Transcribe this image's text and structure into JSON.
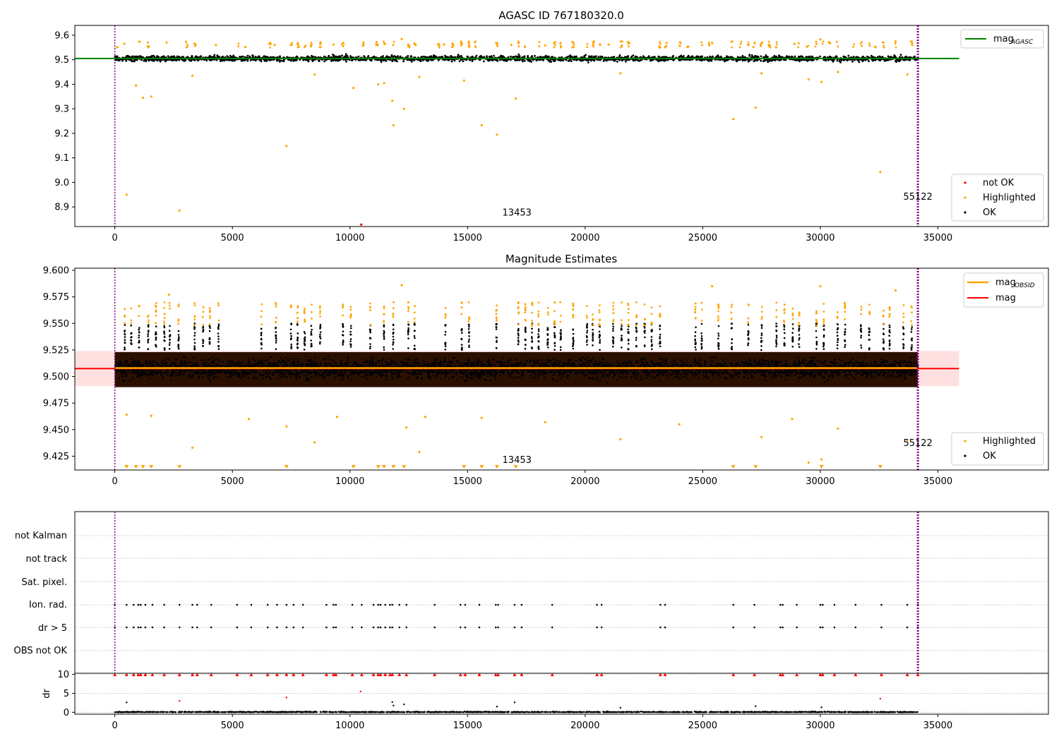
{
  "chart_data": [
    {
      "type": "scatter",
      "title": "AGASC ID 767180320.0",
      "xlabel": "",
      "ylabel": "",
      "xlim": [
        -1700,
        39700
      ],
      "ylim": [
        8.82,
        9.64
      ],
      "xticks": [
        "0",
        "5000",
        "10000",
        "15000",
        "20000",
        "25000",
        "30000",
        "35000"
      ],
      "yticks": [
        "9.6",
        "9.5",
        "9.4",
        "9.3",
        "9.2",
        "9.1",
        "9.0",
        "8.9"
      ],
      "xtick_values": [
        0,
        5000,
        10000,
        15000,
        20000,
        25000,
        30000,
        35000
      ],
      "ytick_values": [
        9.6,
        9.5,
        9.4,
        9.3,
        9.2,
        9.1,
        9.0,
        8.9
      ],
      "grid": false,
      "legend_top": {
        "position": "upper right",
        "entries": [
          {
            "label": "mag",
            "sub": "AGASC",
            "color": "#008000",
            "kind": "line"
          }
        ]
      },
      "legend_bottom": {
        "position": "lower right",
        "entries": [
          {
            "label": "not OK",
            "color": "#ff0000",
            "kind": "dot"
          },
          {
            "label": "Highlighted",
            "color": "#ffa500",
            "kind": "dot"
          },
          {
            "label": "OK",
            "color": "#000000",
            "kind": "dot"
          }
        ]
      },
      "mag_agasc": 9.505,
      "mag_line_range": [
        -1700,
        35900
      ],
      "ok_band": {
        "center": 9.505,
        "halfwidth": 0.025,
        "x_range": [
          0,
          34150
        ]
      },
      "obsid_markers": [
        {
          "x": 0,
          "label": ""
        },
        {
          "x": 34150,
          "label": "55122"
        }
      ],
      "annotations": [
        {
          "text": "13453",
          "x": 17100,
          "y": 8.865
        },
        {
          "text": "55122",
          "x": 34150,
          "y": 8.93
        }
      ],
      "series": [
        {
          "name": "not OK",
          "color": "#ff0000",
          "points": [
            [
              10480,
              8.828
            ]
          ]
        },
        {
          "name": "Highlighted",
          "color": "#ffa500",
          "points": [
            [
              500,
              8.95
            ],
            [
              900,
              9.395
            ],
            [
              1200,
              9.345
            ],
            [
              1550,
              9.35
            ],
            [
              2750,
              8.885
            ],
            [
              3300,
              9.435
            ],
            [
              7300,
              9.148
            ],
            [
              8500,
              9.44
            ],
            [
              10150,
              9.385
            ],
            [
              11200,
              9.4
            ],
            [
              11450,
              9.405
            ],
            [
              11800,
              9.333
            ],
            [
              11850,
              9.233
            ],
            [
              12300,
              9.3
            ],
            [
              12950,
              9.43
            ],
            [
              14850,
              9.415
            ],
            [
              15600,
              9.233
            ],
            [
              16250,
              9.195
            ],
            [
              17050,
              9.342
            ],
            [
              21500,
              9.445
            ],
            [
              26300,
              9.258
            ],
            [
              27250,
              9.305
            ],
            [
              27500,
              9.445
            ],
            [
              29500,
              9.42
            ],
            [
              30050,
              9.41
            ],
            [
              30750,
              9.45
            ],
            [
              32550,
              9.042
            ],
            [
              33700,
              9.44
            ],
            [
              400,
              9.565
            ],
            [
              2200,
              9.57
            ],
            [
              4300,
              9.56
            ],
            [
              6800,
              9.56
            ],
            [
              9300,
              9.562
            ],
            [
              12200,
              9.585
            ],
            [
              14000,
              9.562
            ],
            [
              18300,
              9.558
            ],
            [
              21000,
              9.562
            ],
            [
              25400,
              9.568
            ],
            [
              28900,
              9.565
            ],
            [
              30000,
              9.583
            ],
            [
              33200,
              9.575
            ]
          ]
        }
      ]
    },
    {
      "type": "scatter",
      "title": "Magnitude Estimates",
      "xlabel": "",
      "ylabel": "",
      "xlim": [
        -1700,
        39700
      ],
      "ylim": [
        9.412,
        9.602
      ],
      "xticks": [
        "0",
        "5000",
        "10000",
        "15000",
        "20000",
        "25000",
        "30000",
        "35000"
      ],
      "yticks": [
        "9.600",
        "9.575",
        "9.550",
        "9.525",
        "9.500",
        "9.475",
        "9.450",
        "9.425"
      ],
      "xtick_values": [
        0,
        5000,
        10000,
        15000,
        20000,
        25000,
        30000,
        35000
      ],
      "ytick_values": [
        9.6,
        9.575,
        9.55,
        9.525,
        9.5,
        9.475,
        9.45,
        9.425
      ],
      "grid": false,
      "legend_top": {
        "position": "upper right",
        "entries": [
          {
            "label": "mag",
            "sub": "OBSID",
            "color": "#ffa500",
            "kind": "line"
          },
          {
            "label": "mag",
            "sub": "",
            "color": "#ff0000",
            "kind": "line"
          }
        ]
      },
      "legend_bottom": {
        "position": "lower right",
        "entries": [
          {
            "label": "Highlighted",
            "color": "#ffa500",
            "kind": "dot"
          },
          {
            "label": "OK",
            "color": "#000000",
            "kind": "dot"
          }
        ]
      },
      "mag": 9.5075,
      "mag_band": [
        9.491,
        9.524
      ],
      "mag_obsid": 9.508,
      "mag_line_range": [
        -1700,
        35900
      ],
      "obsid_markers": [
        {
          "x": 0,
          "label": ""
        },
        {
          "x": 34150,
          "label": "55122"
        }
      ],
      "annotations": [
        {
          "text": "13453",
          "x": 17100,
          "y": 9.4185
        },
        {
          "text": "55122",
          "x": 34150,
          "y": 9.4345
        }
      ],
      "offscale_low_x": [
        500,
        900,
        1200,
        1550,
        2750,
        7300,
        10150,
        11200,
        11450,
        11850,
        12300,
        14850,
        15600,
        16250,
        17050,
        26300,
        27250,
        30050,
        32550
      ],
      "series": [
        {
          "name": "Highlighted",
          "color": "#ffa500",
          "points": [
            [
              500,
              9.464
            ],
            [
              1550,
              9.463
            ],
            [
              3300,
              9.433
            ],
            [
              5700,
              9.46
            ],
            [
              7300,
              9.453
            ],
            [
              8500,
              9.438
            ],
            [
              9450,
              9.462
            ],
            [
              12400,
              9.452
            ],
            [
              12950,
              9.429
            ],
            [
              13200,
              9.462
            ],
            [
              15600,
              9.461
            ],
            [
              18300,
              9.457
            ],
            [
              21500,
              9.441
            ],
            [
              24000,
              9.455
            ],
            [
              27500,
              9.443
            ],
            [
              28800,
              9.46
            ],
            [
              29500,
              9.419
            ],
            [
              30050,
              9.422
            ],
            [
              30750,
              9.451
            ],
            [
              33700,
              9.44
            ],
            [
              2300,
              9.577
            ],
            [
              12200,
              9.586
            ],
            [
              25400,
              9.585
            ],
            [
              30000,
              9.585
            ],
            [
              33200,
              9.581
            ]
          ]
        }
      ]
    },
    {
      "type": "scatter",
      "title": "",
      "xlabel": "",
      "ylabel": "",
      "xlim": [
        -1700,
        39700
      ],
      "flag_labels": [
        "not Kalman",
        "not track",
        "Sat. pixel.",
        "Ion. rad.",
        "dr > 5",
        "OBS not OK"
      ],
      "flag_points": {
        "Ion. rad.": [
          0,
          500,
          800,
          1000,
          1100,
          1300,
          1600,
          2100,
          2750,
          3300,
          3500,
          4100,
          5200,
          5800,
          6500,
          6900,
          7300,
          7600,
          8000,
          9000,
          9300,
          9400,
          10100,
          10500,
          11000,
          11200,
          11300,
          11500,
          11700,
          11800,
          12100,
          12400,
          13600,
          14700,
          14900,
          15500,
          16200,
          16300,
          17000,
          17300,
          18600,
          20500,
          20700,
          23200,
          23400,
          26300,
          27200,
          28300,
          28400,
          29000,
          30000,
          30100,
          30600,
          31500,
          32600,
          33700,
          34150
        ],
        "dr > 5": [
          0,
          500,
          800,
          1000,
          1100,
          1300,
          1600,
          2100,
          2750,
          3300,
          3500,
          4100,
          5200,
          5800,
          6500,
          6900,
          7300,
          7600,
          8000,
          9000,
          9300,
          9400,
          10100,
          10500,
          11000,
          11200,
          11300,
          11500,
          11700,
          11800,
          12100,
          12400,
          13600,
          14700,
          14900,
          15500,
          16200,
          16300,
          17000,
          17300,
          18600,
          20500,
          20700,
          23200,
          23400,
          26300,
          27200,
          28300,
          28400,
          29000,
          30000,
          30100,
          30600,
          31500,
          32600,
          33700,
          34150
        ]
      }
    },
    {
      "type": "scatter",
      "title": "",
      "xlabel": "",
      "ylabel": "dr",
      "xlim": [
        -1700,
        39700
      ],
      "ylim": [
        -0.5,
        10.3
      ],
      "xticks": [
        "0",
        "5000",
        "10000",
        "15000",
        "20000",
        "25000",
        "30000",
        "35000"
      ],
      "yticks": [
        "10",
        "5",
        "0"
      ],
      "xtick_values": [
        0,
        5000,
        10000,
        15000,
        20000,
        25000,
        30000,
        35000
      ],
      "ytick_values": [
        10,
        5,
        0
      ],
      "dr_cap": 10,
      "capped_x": [
        0,
        500,
        800,
        1000,
        1100,
        1300,
        1600,
        2100,
        2750,
        3300,
        3500,
        4100,
        5200,
        5800,
        6500,
        6900,
        7300,
        7600,
        8000,
        9000,
        9300,
        9400,
        10100,
        10500,
        11000,
        11200,
        11300,
        11500,
        11700,
        11800,
        12100,
        12400,
        13600,
        14700,
        14900,
        15500,
        16200,
        16300,
        17000,
        17300,
        18600,
        20500,
        20700,
        23200,
        23400,
        26300,
        27200,
        28300,
        28400,
        29000,
        30000,
        30100,
        30600,
        31500,
        32600,
        33700,
        34150
      ],
      "series": [
        {
          "name": "not OK",
          "color": "#ff0000",
          "points": [
            [
              7300,
              3.9
            ],
            [
              10450,
              5.5
            ],
            [
              2750,
              3.0
            ],
            [
              32550,
              3.6
            ]
          ]
        },
        {
          "name": "OK",
          "color": "#000000",
          "points": [
            [
              500,
              2.6
            ],
            [
              11800,
              2.7
            ],
            [
              11850,
              1.8
            ],
            [
              12300,
              2.1
            ],
            [
              17000,
              2.6
            ],
            [
              16250,
              1.5
            ],
            [
              27250,
              1.6
            ],
            [
              30050,
              1.3
            ],
            [
              21500,
              1.2
            ]
          ]
        }
      ]
    }
  ]
}
